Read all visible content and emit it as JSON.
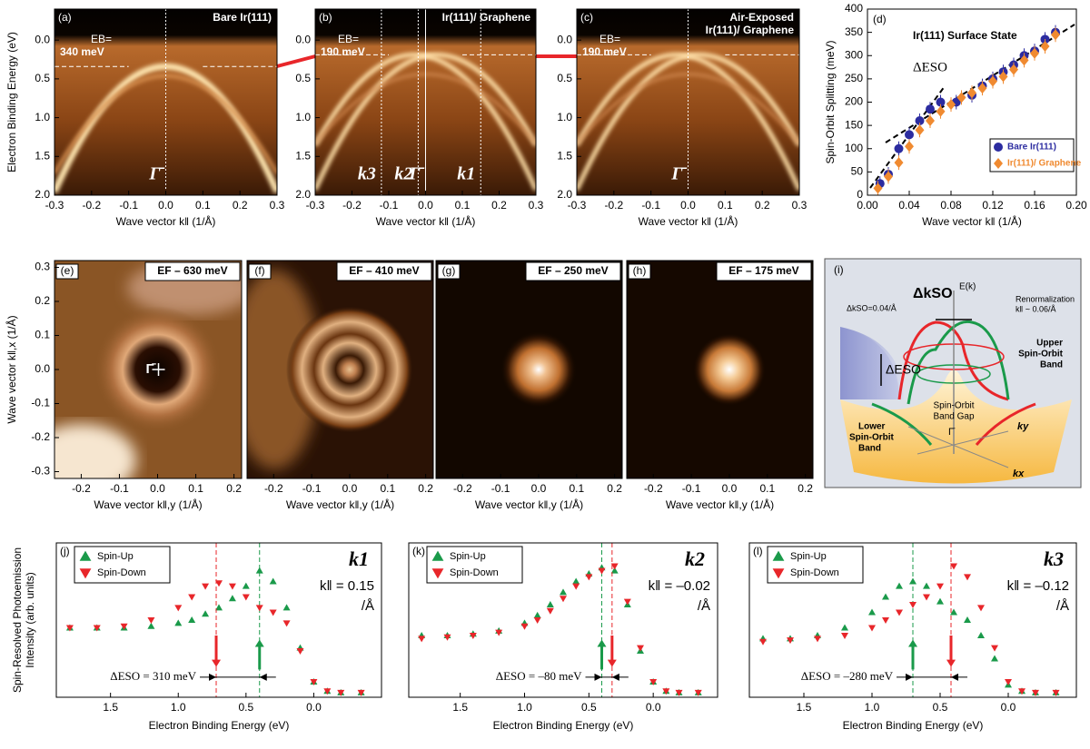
{
  "chart_data": [
    {
      "type": "image",
      "panel": "(a)",
      "title": [
        "Bare Ir(111)"
      ],
      "xlabel": "Wave vector k‖ (1/Å)",
      "ylabel": "Electron Binding Energy (eV)",
      "xlim": [
        -0.3,
        0.3
      ],
      "xticks": [
        -0.3,
        -0.2,
        -0.1,
        {
          "value": 0,
          "label": "0.0"
        },
        0.1,
        0.2,
        0.3
      ],
      "ylim": [
        2.0,
        -0.4
      ],
      "yticks": [
        {
          "value": 0,
          "label": "0.0"
        },
        0.5,
        {
          "value": 1,
          "label": "1.0"
        },
        1.5,
        {
          "value": 2,
          "label": "2.0"
        }
      ],
      "eb_label": "EB=",
      "eb_value_label": "340 meV",
      "eb": 0.34,
      "points": [
        {
          "label": "Γ̄",
          "k": 0
        }
      ]
    },
    {
      "type": "image",
      "panel": "(b)",
      "title": [
        "Ir(111)/ Graphene"
      ],
      "xlabel": "Wave vector k‖ (1/Å)",
      "xlim": [
        -0.3,
        0.3
      ],
      "xticks": [
        -0.3,
        -0.2,
        -0.1,
        {
          "value": 0,
          "label": "0.0"
        },
        0.1,
        0.2,
        0.3
      ],
      "ylim": [
        2.0,
        -0.4
      ],
      "yticks": [
        {
          "value": 0,
          "label": "0.0"
        },
        0.5,
        {
          "value": 1,
          "label": "1.0"
        },
        1.5,
        {
          "value": 2,
          "label": "2.0"
        }
      ],
      "eb_label": "EB=",
      "eb_value_label": "190 meV",
      "eb": 0.19,
      "points": [
        {
          "label": "k3",
          "k": -0.12
        },
        {
          "label": "k2",
          "k": -0.02
        },
        {
          "label": "Γ̄",
          "k": 0
        },
        {
          "label": "k1",
          "k": 0.15
        }
      ]
    },
    {
      "type": "image",
      "panel": "(c)",
      "title": [
        "Air-Exposed",
        "Ir(111)/ Graphene"
      ],
      "xlabel": "Wave vector k‖ (1/Å)",
      "xlim": [
        -0.3,
        0.3
      ],
      "xticks": [
        -0.3,
        -0.2,
        -0.1,
        {
          "value": 0,
          "label": "0.0"
        },
        0.1,
        0.2,
        0.3
      ],
      "ylim": [
        2.0,
        -0.4
      ],
      "yticks": [
        {
          "value": 0,
          "label": "0.0"
        },
        0.5,
        {
          "value": 1,
          "label": "1.0"
        },
        1.5,
        {
          "value": 2,
          "label": "2.0"
        }
      ],
      "eb_label": "EB=",
      "eb_value_label": "190 meV",
      "eb": 0.19,
      "points": [
        {
          "label": "Γ̄",
          "k": 0
        }
      ]
    },
    {
      "type": "scatter",
      "panel": "(d)",
      "title": [
        "Ir(111) Surface State"
      ],
      "annotation": "ΔESO",
      "xlabel": "Wave vector k‖ (1/Å)",
      "ylabel": "Spin-Orbit Splitting (meV)",
      "xlim": [
        0,
        0.2
      ],
      "xticks": [
        {
          "value": 0,
          "label": "0.00"
        },
        0.04,
        0.08,
        0.12,
        0.16,
        {
          "value": 0.2,
          "label": "0.20"
        }
      ],
      "ylim": [
        0,
        400
      ],
      "yticks": [
        0,
        50,
        100,
        150,
        200,
        250,
        300,
        350,
        400
      ],
      "series": [
        {
          "name": "Bare Ir(111)",
          "color": "#2c2ca0",
          "marker": "circle",
          "x": [
            0.012,
            0.02,
            0.03,
            0.04,
            0.05,
            0.06,
            0.07,
            0.085,
            0.1,
            0.11,
            0.12,
            0.13,
            0.14,
            0.15,
            0.16,
            0.17,
            0.18
          ],
          "values": [
            25,
            45,
            100,
            130,
            160,
            185,
            200,
            200,
            215,
            235,
            250,
            265,
            280,
            300,
            310,
            335,
            350
          ]
        },
        {
          "name": "Ir(111)/ Graphene",
          "color": "#f08a30",
          "marker": "diamond",
          "x": [
            0.01,
            0.02,
            0.03,
            0.04,
            0.05,
            0.06,
            0.07,
            0.08,
            0.09,
            0.1,
            0.11,
            0.12,
            0.13,
            0.14,
            0.15,
            0.16,
            0.17,
            0.18
          ],
          "values": [
            15,
            40,
            70,
            105,
            140,
            160,
            180,
            195,
            210,
            220,
            230,
            245,
            255,
            270,
            290,
            305,
            320,
            345
          ]
        }
      ]
    },
    {
      "type": "image",
      "panel": "(e)",
      "title": [
        "EF – 630 meV"
      ],
      "xlabel": "Wave vector k‖,y (1/Å)",
      "ylabel": "Wave vector k‖,x (1/Å)",
      "center_label": "Γ̄",
      "xlim": [
        -0.27,
        0.22
      ],
      "xticks": [
        -0.2,
        -0.1,
        {
          "value": 0,
          "label": "0.0"
        },
        0.1,
        0.2
      ],
      "ylim": [
        -0.32,
        0.32
      ],
      "yticks": [
        -0.3,
        -0.2,
        -0.1,
        {
          "value": 0,
          "label": "0.0"
        },
        0.1,
        0.2,
        0.3
      ]
    },
    {
      "type": "image",
      "panel": "(f)",
      "title": [
        "EF – 410 meV"
      ],
      "xlabel": "Wave vector k‖,y (1/Å)",
      "xlim": [
        -0.27,
        0.22
      ],
      "xticks": [
        -0.2,
        -0.1,
        {
          "value": 0,
          "label": "0.0"
        },
        0.1,
        0.2
      ],
      "ylim": [
        -0.32,
        0.32
      ]
    },
    {
      "type": "image",
      "panel": "(g)",
      "title": [
        "EF – 250 meV"
      ],
      "xlabel": "Wave vector k‖,y (1/Å)",
      "xlim": [
        -0.27,
        0.22
      ],
      "xticks": [
        -0.2,
        -0.1,
        {
          "value": 0,
          "label": "0.0"
        },
        0.1,
        0.2
      ],
      "ylim": [
        -0.32,
        0.32
      ]
    },
    {
      "type": "image",
      "panel": "(h)",
      "title": [
        "EF – 175 meV"
      ],
      "xlabel": "Wave vector k‖,y (1/Å)",
      "xlim": [
        -0.27,
        0.22
      ],
      "xticks": [
        -0.2,
        -0.1,
        {
          "value": 0,
          "label": "0.0"
        },
        0.1,
        0.2
      ],
      "ylim": [
        -0.32,
        0.32
      ]
    },
    {
      "type": "diagram",
      "panel": "(i)",
      "delta_k": "ΔkSO",
      "ek_axis": "E(k)",
      "renorm": "Renormalization",
      "renorm_k": "k‖ ~ 0.06/Å",
      "dk_so": "ΔkSO=0.04/Å",
      "upper_band": [
        "Upper",
        "Spin-Orbit",
        "Band"
      ],
      "delta_e": "ΔESO",
      "gap": [
        "Spin-Orbit",
        "Band Gap"
      ],
      "gamma": "Γ̄",
      "lower_band": [
        "Lower",
        "Spin-Orbit",
        "Band"
      ],
      "ky": "ky",
      "kx": "kx"
    },
    {
      "type": "line",
      "panel": "(j)",
      "label": "k1",
      "k_label": "k‖ = 0.15",
      "per": "/Å",
      "delta_label": "ΔESO = 310 meV",
      "xlabel": "Electron Binding Energy (eV)",
      "ylabel": [
        "Spin-Resolved Photoemission",
        "Intensity (arb. units)"
      ],
      "xlim": [
        1.9,
        -0.5
      ],
      "xticks": [
        1.5,
        {
          "value": 1,
          "label": "1.0"
        },
        0.5,
        {
          "value": 0,
          "label": "0.0"
        }
      ],
      "ylim": [
        0,
        1
      ],
      "x": [
        1.8,
        1.6,
        1.4,
        1.2,
        1.0,
        0.9,
        0.8,
        0.7,
        0.6,
        0.5,
        0.4,
        0.3,
        0.2,
        0.1,
        0.0,
        -0.1,
        -0.2,
        -0.35
      ],
      "series": [
        {
          "name": "Spin-Up",
          "color": "#1a9a4a",
          "marker": "up",
          "peak": 0.4,
          "values": [
            0.45,
            0.45,
            0.45,
            0.46,
            0.48,
            0.5,
            0.54,
            0.58,
            0.64,
            0.72,
            0.82,
            0.75,
            0.58,
            0.32,
            0.1,
            0.04,
            0.03,
            0.03
          ]
        },
        {
          "name": "Spin-Down",
          "color": "#e8262a",
          "marker": "down",
          "peak": 0.72,
          "values": [
            0.45,
            0.45,
            0.46,
            0.5,
            0.58,
            0.65,
            0.72,
            0.74,
            0.72,
            0.65,
            0.58,
            0.55,
            0.48,
            0.3,
            0.1,
            0.04,
            0.03,
            0.03
          ]
        }
      ]
    },
    {
      "type": "line",
      "panel": "(k)",
      "label": "k2",
      "k_label": "k‖ = –0.02",
      "per": "/Å",
      "delta_label": "ΔESO = –80 meV",
      "xlabel": "Electron Binding Energy (eV)",
      "xlim": [
        1.9,
        -0.5
      ],
      "xticks": [
        1.5,
        {
          "value": 1,
          "label": "1.0"
        },
        0.5,
        {
          "value": 0,
          "label": "0.0"
        }
      ],
      "ylim": [
        0,
        1
      ],
      "x": [
        1.8,
        1.6,
        1.4,
        1.2,
        1.0,
        0.9,
        0.8,
        0.7,
        0.6,
        0.5,
        0.4,
        0.3,
        0.2,
        0.1,
        0.0,
        -0.1,
        -0.2,
        -0.35
      ],
      "series": [
        {
          "name": "Spin-Up",
          "color": "#1a9a4a",
          "marker": "up",
          "peak": 0.4,
          "values": [
            0.4,
            0.4,
            0.41,
            0.43,
            0.48,
            0.53,
            0.6,
            0.68,
            0.75,
            0.8,
            0.84,
            0.82,
            0.6,
            0.3,
            0.1,
            0.04,
            0.03,
            0.03
          ]
        },
        {
          "name": "Spin-Down",
          "color": "#e8262a",
          "marker": "down",
          "peak": 0.32,
          "values": [
            0.38,
            0.39,
            0.4,
            0.42,
            0.46,
            0.5,
            0.56,
            0.64,
            0.72,
            0.78,
            0.82,
            0.85,
            0.62,
            0.32,
            0.1,
            0.04,
            0.03,
            0.03
          ]
        }
      ]
    },
    {
      "type": "line",
      "panel": "(l)",
      "label": "k3",
      "k_label": "k‖ = –0.12",
      "per": "/Å",
      "delta_label": "ΔESO = –280 meV",
      "xlabel": "Electron Binding Energy (eV)",
      "xlim": [
        1.9,
        -0.5
      ],
      "xticks": [
        1.5,
        {
          "value": 1,
          "label": "1.0"
        },
        0.5,
        {
          "value": 0,
          "label": "0.0"
        }
      ],
      "ylim": [
        0,
        1
      ],
      "x": [
        1.8,
        1.6,
        1.4,
        1.2,
        1.0,
        0.9,
        0.8,
        0.7,
        0.6,
        0.5,
        0.4,
        0.3,
        0.2,
        0.1,
        0.0,
        -0.1,
        -0.2,
        -0.35
      ],
      "series": [
        {
          "name": "Spin-Up",
          "color": "#1a9a4a",
          "marker": "up",
          "peak": 0.7,
          "values": [
            0.38,
            0.38,
            0.4,
            0.45,
            0.55,
            0.65,
            0.72,
            0.75,
            0.72,
            0.62,
            0.55,
            0.5,
            0.4,
            0.25,
            0.08,
            0.04,
            0.03,
            0.03
          ]
        },
        {
          "name": "Spin-Down",
          "color": "#e8262a",
          "marker": "down",
          "peak": 0.42,
          "values": [
            0.36,
            0.37,
            0.38,
            0.4,
            0.45,
            0.5,
            0.55,
            0.6,
            0.65,
            0.72,
            0.85,
            0.78,
            0.58,
            0.32,
            0.1,
            0.04,
            0.03,
            0.03
          ]
        }
      ]
    }
  ]
}
